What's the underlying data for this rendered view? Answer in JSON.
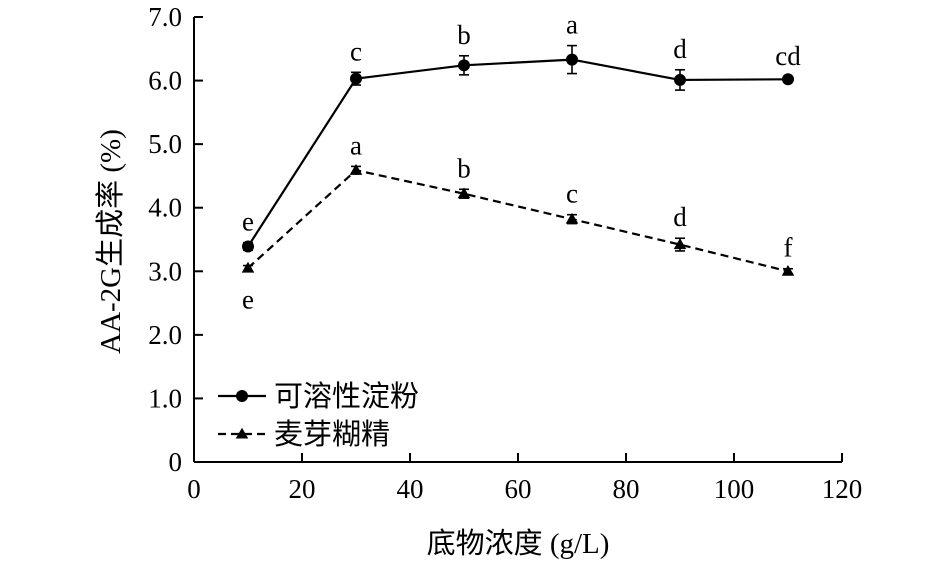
{
  "chart_data": {
    "type": "line",
    "title": "",
    "xlabel": "底物浓度 (g/L)",
    "ylabel": "AA-2G生成率 (%)",
    "xlim": [
      0,
      120
    ],
    "ylim": [
      0,
      7.0
    ],
    "x_ticks": [
      "0",
      "20",
      "40",
      "60",
      "80",
      "100",
      "120"
    ],
    "y_ticks": [
      "0",
      "1.0",
      "2.0",
      "3.0",
      "4.0",
      "5.0",
      "6.0",
      "7.0"
    ],
    "grid": false,
    "legend_position": "bottom-left",
    "x": [
      10,
      30,
      50,
      70,
      90,
      110
    ],
    "series": [
      {
        "name": "可溶性淀粉",
        "marker": "circle",
        "line_style": "solid",
        "values": [
          3.39,
          6.03,
          6.24,
          6.33,
          6.01,
          6.02
        ],
        "errors": [
          0.06,
          0.1,
          0.15,
          0.22,
          0.16,
          0.04
        ],
        "labels": [
          "e",
          "c",
          "b",
          "a",
          "d",
          "cd"
        ]
      },
      {
        "name": "麦芽糊精",
        "marker": "triangle",
        "line_style": "dashed",
        "values": [
          3.05,
          4.59,
          4.22,
          3.82,
          3.42,
          3.0
        ],
        "errors": [
          0.04,
          0.06,
          0.07,
          0.07,
          0.1,
          0.04
        ],
        "labels": [
          "e",
          "a",
          "b",
          "c",
          "d",
          "f"
        ]
      }
    ]
  }
}
